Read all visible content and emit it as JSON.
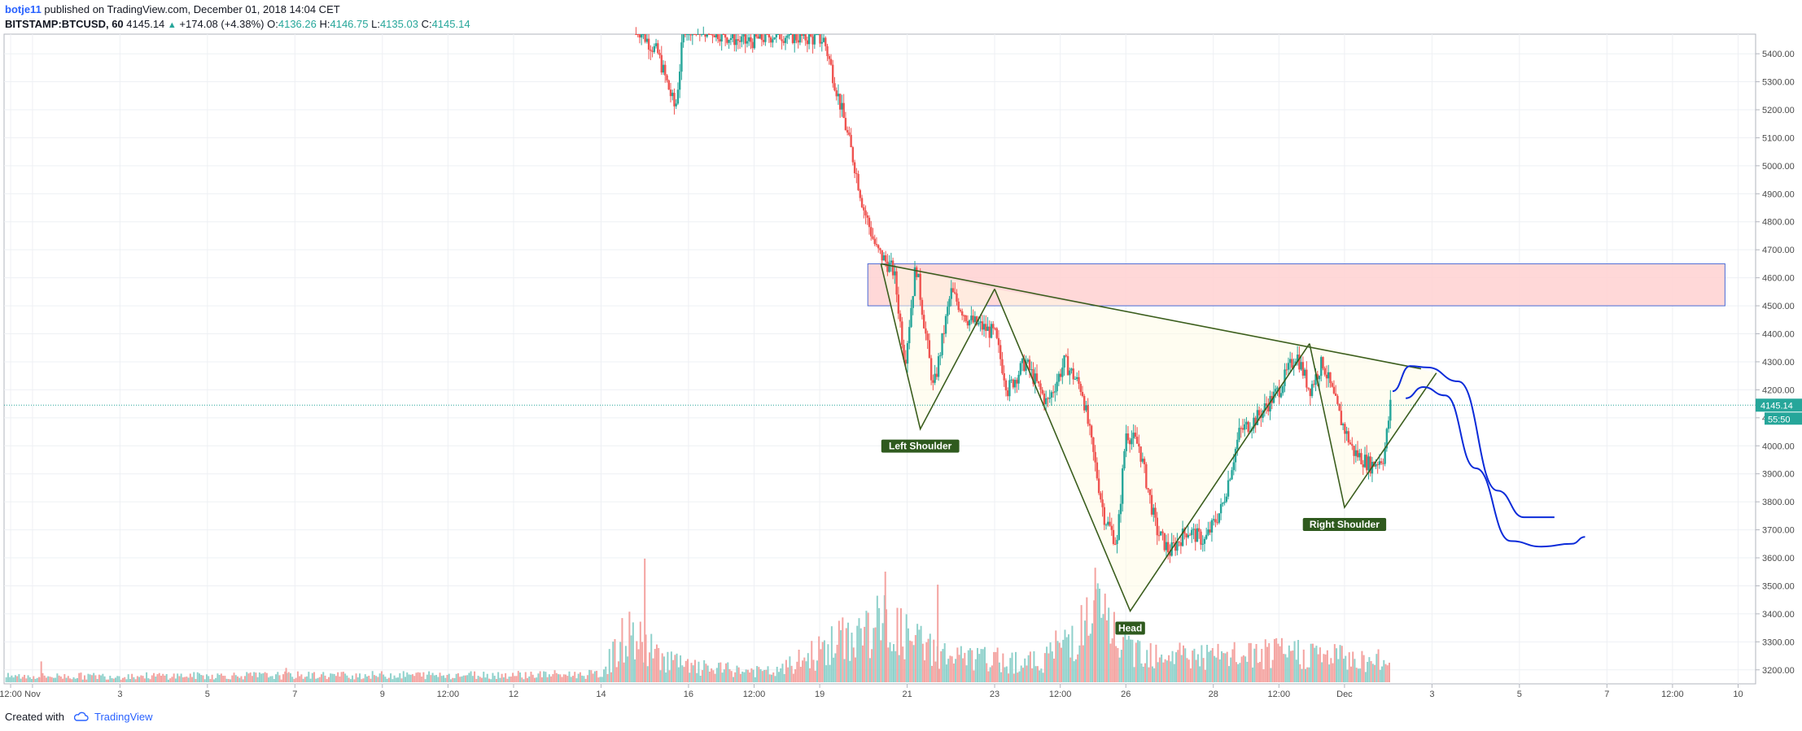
{
  "header": {
    "author": "botje11",
    "published_text": "published on TradingView.com, December 01, 2018 14:04 CET",
    "symbol": "BITSTAMP:BTCUSD, 60",
    "last": "4145.14",
    "change": "+174.08 (+4.38%)",
    "open_label": "O:",
    "open": "4136.26",
    "high_label": "H:",
    "high": "4146.75",
    "low_label": "L:",
    "low": "4135.03",
    "close_label": "C:",
    "close": "4145.14"
  },
  "footer": {
    "created_with": "Created with",
    "brand": "TradingView",
    "icon": "tradingview-cloud-icon"
  },
  "colors": {
    "up": "#26a69a",
    "down": "#ef5350",
    "line": "#3b5e1e",
    "zone_fill": "#ffd1d1",
    "zone_stroke": "#4a6bd6",
    "fill": "#fffbe6",
    "projection": "#0b2bd9",
    "label_bg": "#2f5a1e"
  },
  "chart_data": {
    "type": "candlestick",
    "price_scale": {
      "ticks": [
        3200,
        3300,
        3400,
        3500,
        3600,
        3700,
        3800,
        3900,
        4000,
        4100,
        4200,
        4300,
        4400,
        4500,
        4600,
        4700,
        4800,
        4900,
        5000,
        5100,
        5200,
        5300,
        5400
      ],
      "ylim": [
        3150,
        5470
      ],
      "format": "2 decimals"
    },
    "time_scale": {
      "ticks": [
        "12:00",
        "Nov",
        "3",
        "5",
        "7",
        "9",
        "12:00",
        "12",
        "14",
        "16",
        "12:00",
        "19",
        "21",
        "23",
        "12:00",
        "26",
        "28",
        "12:00",
        "Dec",
        "3",
        "5",
        "7",
        "12:00",
        "10"
      ],
      "tick_day_index": [
        0.5,
        1,
        3,
        5,
        7,
        9,
        10.5,
        12,
        14,
        16,
        17.5,
        19,
        21,
        23,
        24.5,
        26,
        28,
        29.5,
        31,
        33,
        35,
        37,
        38.5,
        40
      ],
      "xlim": [
        0.35,
        40.4
      ]
    },
    "last_price_label": "4145.14",
    "countdown_label": "55:50",
    "price_path": [
      {
        "x": 14.8,
        "y": 5500
      },
      {
        "x": 15.3,
        "y": 5400
      },
      {
        "x": 15.7,
        "y": 5200
      },
      {
        "x": 15.9,
        "y": 5500
      },
      {
        "x": 16.6,
        "y": 5480
      },
      {
        "x": 17.3,
        "y": 5440
      },
      {
        "x": 18.0,
        "y": 5470
      },
      {
        "x": 19.1,
        "y": 5450
      },
      {
        "x": 19.5,
        "y": 5200
      },
      {
        "x": 19.8,
        "y": 5000
      },
      {
        "x": 20.0,
        "y": 4850
      },
      {
        "x": 20.3,
        "y": 4700
      },
      {
        "x": 20.7,
        "y": 4620
      },
      {
        "x": 20.95,
        "y": 4300
      },
      {
        "x": 21.2,
        "y": 4650
      },
      {
        "x": 21.6,
        "y": 4200
      },
      {
        "x": 22.0,
        "y": 4550
      },
      {
        "x": 22.4,
        "y": 4450
      },
      {
        "x": 23.0,
        "y": 4400
      },
      {
        "x": 23.3,
        "y": 4200
      },
      {
        "x": 23.7,
        "y": 4300
      },
      {
        "x": 24.2,
        "y": 4150
      },
      {
        "x": 24.6,
        "y": 4300
      },
      {
        "x": 25.0,
        "y": 4200
      },
      {
        "x": 25.5,
        "y": 3750
      },
      {
        "x": 25.8,
        "y": 3650
      },
      {
        "x": 26.0,
        "y": 4050
      },
      {
        "x": 26.3,
        "y": 4000
      },
      {
        "x": 26.7,
        "y": 3700
      },
      {
        "x": 27.0,
        "y": 3620
      },
      {
        "x": 27.4,
        "y": 3700
      },
      {
        "x": 27.8,
        "y": 3660
      },
      {
        "x": 28.2,
        "y": 3780
      },
      {
        "x": 28.6,
        "y": 4050
      },
      {
        "x": 29.0,
        "y": 4100
      },
      {
        "x": 29.5,
        "y": 4200
      },
      {
        "x": 29.9,
        "y": 4330
      },
      {
        "x": 30.2,
        "y": 4200
      },
      {
        "x": 30.5,
        "y": 4300
      },
      {
        "x": 30.9,
        "y": 4100
      },
      {
        "x": 31.2,
        "y": 3980
      },
      {
        "x": 31.6,
        "y": 3930
      },
      {
        "x": 31.9,
        "y": 3960
      },
      {
        "x": 32.05,
        "y": 4145
      }
    ],
    "volume_path": [
      {
        "x": 0.4,
        "v": 0.06
      },
      {
        "x": 14.0,
        "v": 0.08
      },
      {
        "x": 14.6,
        "v": 0.5
      },
      {
        "x": 15.2,
        "v": 0.3
      },
      {
        "x": 16.0,
        "v": 0.15
      },
      {
        "x": 18.0,
        "v": 0.1
      },
      {
        "x": 19.4,
        "v": 0.4
      },
      {
        "x": 20.5,
        "v": 0.6
      },
      {
        "x": 21.0,
        "v": 0.45
      },
      {
        "x": 22.0,
        "v": 0.25
      },
      {
        "x": 24.0,
        "v": 0.2
      },
      {
        "x": 25.4,
        "v": 0.7
      },
      {
        "x": 26.0,
        "v": 0.35
      },
      {
        "x": 28.0,
        "v": 0.25
      },
      {
        "x": 30.0,
        "v": 0.3
      },
      {
        "x": 32.05,
        "v": 0.2
      }
    ],
    "volume_spikes": [
      {
        "x": 1.2,
        "v": 0.16
      },
      {
        "x": 6.8,
        "v": 0.11
      },
      {
        "x": 15.0,
        "v": 0.95
      },
      {
        "x": 20.5,
        "v": 0.85
      },
      {
        "x": 25.3,
        "v": 0.88
      },
      {
        "x": 21.7,
        "v": 0.75
      }
    ],
    "resistance_zone": {
      "x1": 20.1,
      "x2": 39.7,
      "y1": 4500,
      "y2": 4650
    },
    "pattern_lines": [
      {
        "name": "neckline",
        "points": [
          [
            20.4,
            4650
          ],
          [
            32.75,
            4275
          ]
        ]
      },
      {
        "name": "left-shoulder",
        "points": [
          [
            20.4,
            4650
          ],
          [
            21.3,
            4060
          ],
          [
            23.0,
            4560
          ]
        ]
      },
      {
        "name": "head",
        "points": [
          [
            23.0,
            4560
          ],
          [
            26.1,
            3410
          ],
          [
            30.2,
            4365
          ]
        ]
      },
      {
        "name": "right-shoulder",
        "points": [
          [
            30.2,
            4365
          ],
          [
            31.0,
            3780
          ],
          [
            33.1,
            4260
          ]
        ]
      }
    ],
    "annotations": [
      {
        "text": "Left Shoulder",
        "x": 21.3,
        "y": 4060
      },
      {
        "text": "Head",
        "x": 26.1,
        "y": 3410
      },
      {
        "text": "Right Shoulder",
        "x": 31.0,
        "y": 3780
      }
    ],
    "projection_curves": [
      {
        "points": [
          [
            32.1,
            4195
          ],
          [
            32.5,
            4285
          ],
          [
            32.9,
            4280
          ],
          [
            33.6,
            4230
          ],
          [
            34.5,
            3840
          ],
          [
            35.1,
            3745
          ],
          [
            35.8,
            3745
          ]
        ]
      },
      {
        "points": [
          [
            32.4,
            4170
          ],
          [
            32.8,
            4210
          ],
          [
            33.3,
            4180
          ],
          [
            34.0,
            3920
          ],
          [
            34.8,
            3660
          ],
          [
            35.5,
            3640
          ],
          [
            36.2,
            3650
          ],
          [
            36.5,
            3675
          ]
        ]
      }
    ]
  }
}
